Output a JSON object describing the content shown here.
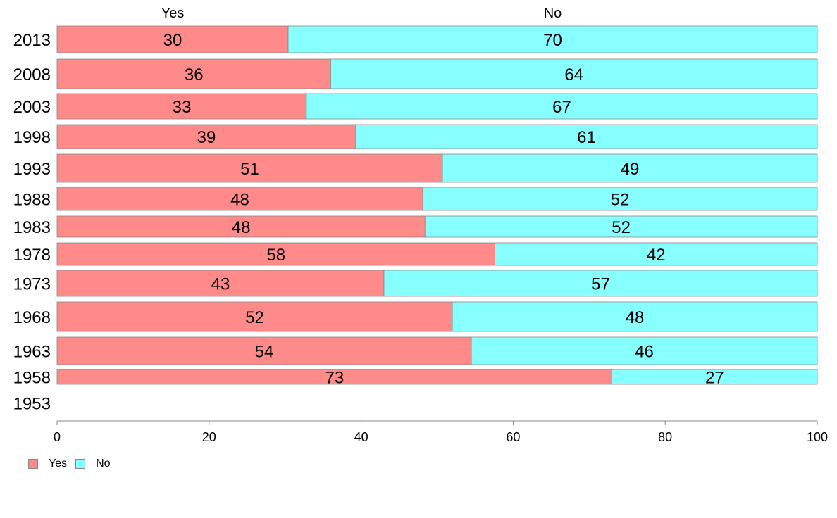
{
  "chart_data": {
    "type": "bar",
    "orientation": "horizontal",
    "stacked": true,
    "categories": [
      "2013",
      "2008",
      "2003",
      "1998",
      "1993",
      "1988",
      "1983",
      "1978",
      "1973",
      "1968",
      "1963",
      "1958",
      "1953"
    ],
    "series": [
      {
        "name": "Yes",
        "color": "#ff8a8a",
        "values": [
          30.4,
          36.0,
          32.8,
          39.3,
          50.7,
          48.1,
          48.4,
          57.6,
          43.0,
          52.0,
          54.5,
          73.0,
          null
        ]
      },
      {
        "name": "No",
        "color": "#88ffff",
        "values": [
          69.6,
          64.0,
          67.2,
          60.7,
          49.3,
          51.9,
          51.6,
          42.4,
          57.0,
          48.0,
          45.5,
          27.0,
          null
        ]
      }
    ],
    "data_labels": {
      "Yes": [
        "30",
        "36",
        "33",
        "39",
        "51",
        "48",
        "48",
        "58",
        "43",
        "52",
        "54",
        "73",
        ""
      ],
      "No": [
        "70",
        "64",
        "67",
        "61",
        "49",
        "52",
        "52",
        "42",
        "57",
        "48",
        "46",
        "27",
        ""
      ]
    },
    "column_headers": [
      "Yes",
      "No"
    ],
    "xlim": [
      0,
      100
    ],
    "xticks": [
      "0",
      "20",
      "40",
      "60",
      "80",
      "100"
    ],
    "legend": {
      "position": "bottom-left",
      "items": [
        "Yes",
        "No"
      ]
    },
    "grid": false
  }
}
